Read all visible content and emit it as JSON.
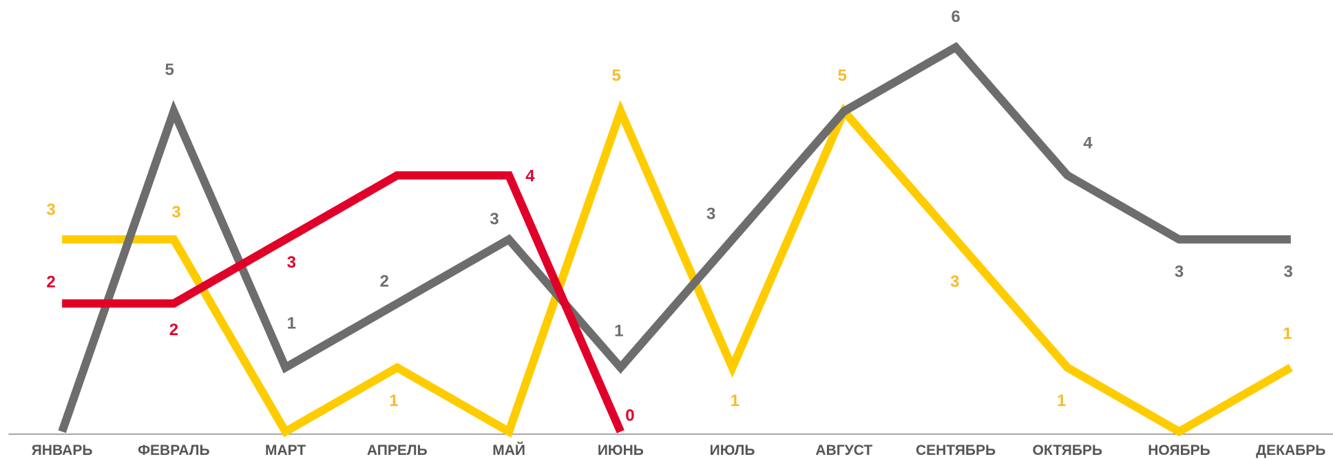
{
  "chart_data": {
    "type": "line",
    "categories": [
      "ЯНВАРЬ",
      "ФЕВРАЛЬ",
      "МАРТ",
      "АПРЕЛЬ",
      "МАЙ",
      "ИЮНЬ",
      "ИЮЛЬ",
      "АВГУСТ",
      "СЕНТЯБРЬ",
      "ОКТЯБРЬ",
      "НОЯБРЬ",
      "ДЕКАБРЬ"
    ],
    "series": [
      {
        "color": "#ffcc00",
        "label_color": "#f7bb2a",
        "values": [
          3,
          3,
          0,
          1,
          0,
          5,
          1,
          5,
          3,
          1,
          0,
          1
        ],
        "value_labels": [
          "3",
          "3",
          null,
          "1",
          null,
          "5",
          "1",
          "5",
          "3",
          "1",
          null,
          "1"
        ]
      },
      {
        "color": "#6d6d6d",
        "label_color": "#6d6d6d",
        "values": [
          0,
          5,
          1,
          2,
          3,
          1,
          3,
          5,
          6,
          4,
          3,
          3
        ],
        "value_labels": [
          null,
          "5",
          "1",
          "2",
          "3",
          "1",
          "3",
          null,
          "6",
          "4",
          "3",
          "3"
        ]
      },
      {
        "color": "#e0002a",
        "label_color": "#e0002a",
        "values": [
          2,
          2,
          3,
          4,
          4,
          0,
          null,
          null,
          null,
          null,
          null,
          null
        ],
        "value_labels": [
          "2",
          "2",
          "3",
          null,
          "4",
          "0",
          null,
          null,
          null,
          null,
          null,
          null
        ]
      }
    ],
    "ylim": [
      0,
      6
    ]
  }
}
